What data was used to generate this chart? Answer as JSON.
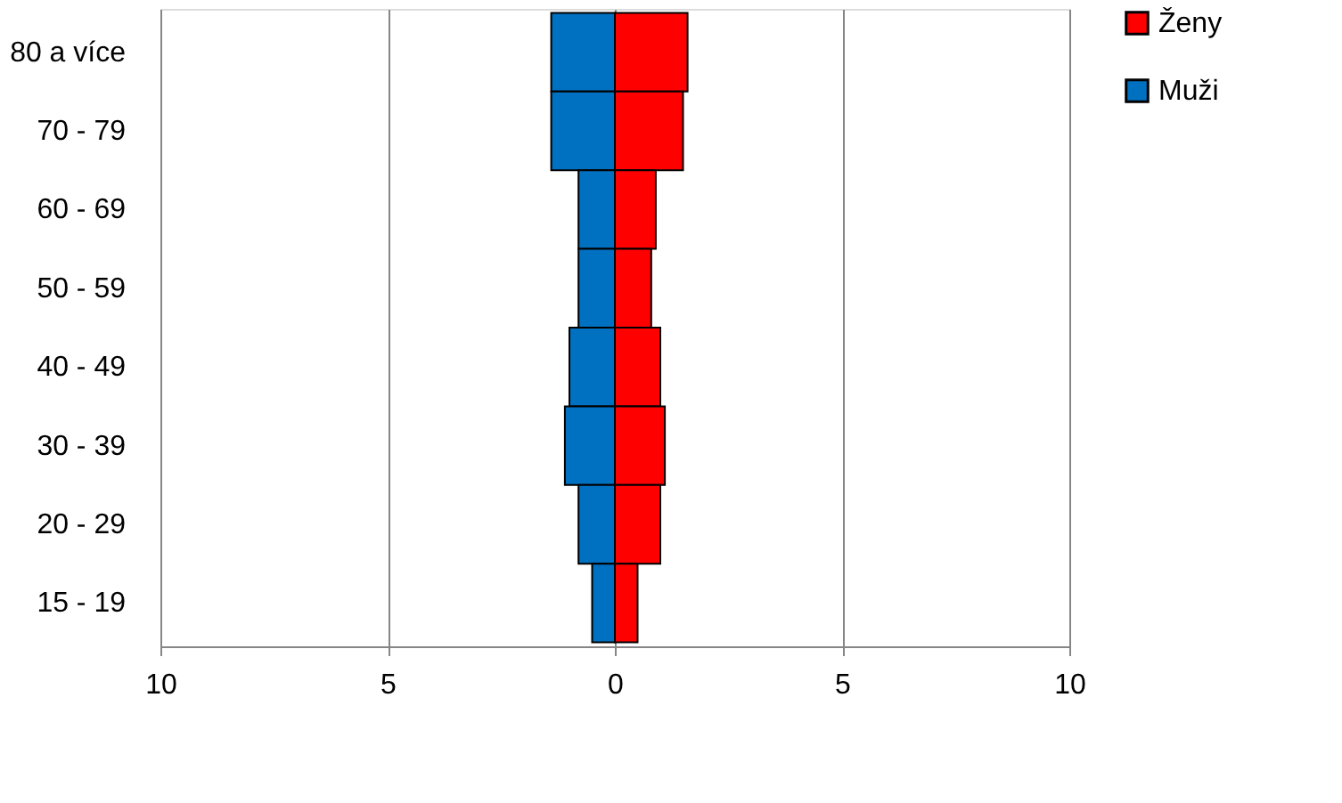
{
  "chart_data": {
    "type": "bar",
    "orientation": "horizontal",
    "stacked": true,
    "categories": [
      "80 a více",
      "70 - 79",
      "60 - 69",
      "50 - 59",
      "40 - 49",
      "30 - 39",
      "20 - 29",
      "15 - 19"
    ],
    "series": [
      {
        "name": "Ženy",
        "color": "#ff0000",
        "values": [
          1.6,
          1.5,
          0.9,
          0.8,
          1.0,
          1.1,
          1.0,
          0.5
        ]
      },
      {
        "name": "Muži",
        "color": "#0070c0",
        "values": [
          -1.4,
          -1.4,
          -0.8,
          -0.8,
          -1.0,
          -1.1,
          -0.8,
          -0.5
        ]
      }
    ],
    "xlim": [
      -10,
      10
    ],
    "xticks": [
      {
        "value": -10,
        "label": "10"
      },
      {
        "value": -5,
        "label": "5"
      },
      0,
      5,
      10
    ],
    "grid": "x",
    "legend": "right"
  }
}
